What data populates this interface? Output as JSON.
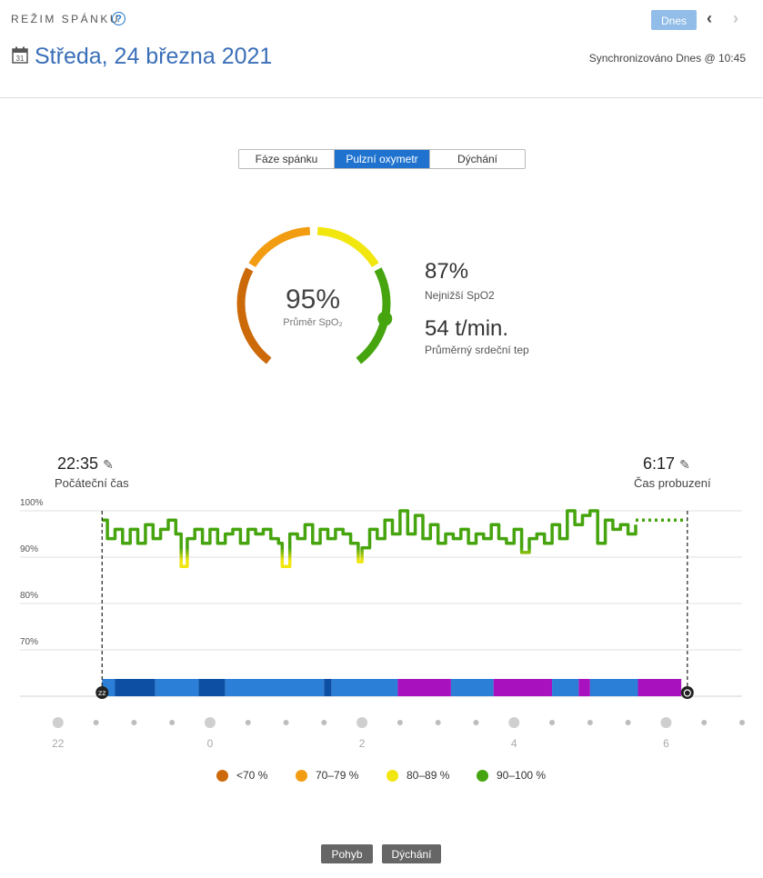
{
  "header": {
    "title": "REŽIM SPÁNKU",
    "help_symbol": "?",
    "today_label": "Dnes",
    "prev_symbol": "‹",
    "next_symbol": "›",
    "calendar_day": "31",
    "date": "Středa, 24 března 2021",
    "sync": "Synchronizováno Dnes @ 10:45"
  },
  "tabs": [
    {
      "label": "Fáze spánku",
      "active": false
    },
    {
      "label": "Pulzní oxymetr",
      "active": true
    },
    {
      "label": "Dýchání",
      "active": false
    }
  ],
  "gauge": {
    "avg_value": "95%",
    "avg_label": "Průměr SpO₂",
    "avg_fraction": 0.95,
    "colors": {
      "lt70": "#cc6a0a",
      "70_79": "#f29c12",
      "80_89": "#f2e60f",
      "90_100": "#46a40e"
    }
  },
  "stats": {
    "lowest_value": "87%",
    "lowest_label": "Nejnižší SpO2",
    "hr_value": "54 t/min.",
    "hr_label": "Průměrný srdeční tep"
  },
  "times": {
    "start": "22:35",
    "start_label": "Počáteční čas",
    "end": "6:17",
    "end_label": "Čas probuzení",
    "edit_icon": "✎"
  },
  "chart_data": {
    "type": "line",
    "ylim": [
      60,
      100
    ],
    "y_ticks": [
      "100%",
      "90%",
      "80%",
      "70%"
    ],
    "y_tick_values": [
      100,
      90,
      80,
      70
    ],
    "x_ticks": [
      "22",
      "0",
      "2",
      "4",
      "6"
    ],
    "x_tick_hours": [
      22,
      24,
      26,
      28,
      30
    ],
    "x_range_hours": [
      21.5,
      31.0
    ],
    "start_hour": 22.58,
    "end_hour": 30.28,
    "series": [
      {
        "x": [
          22.58,
          22.65,
          22.75,
          22.85,
          22.95,
          23.05,
          23.15,
          23.25,
          23.35,
          23.45,
          23.55,
          23.62,
          23.7,
          23.8,
          23.9,
          24.0,
          24.1,
          24.2,
          24.3,
          24.4,
          24.5,
          24.6,
          24.7,
          24.8,
          24.9,
          24.95,
          25.05,
          25.15,
          25.25,
          25.35,
          25.45,
          25.55,
          25.65,
          25.75,
          25.85,
          25.95,
          26.0,
          26.1,
          26.2,
          26.3,
          26.4,
          26.5,
          26.6,
          26.7,
          26.8,
          26.9,
          27.0,
          27.1,
          27.2,
          27.3,
          27.4,
          27.5,
          27.6,
          27.7,
          27.8,
          27.9,
          28.0,
          28.1,
          28.2,
          28.3,
          28.4,
          28.5,
          28.6,
          28.7,
          28.8,
          28.9,
          29.0,
          29.1,
          29.2,
          29.3,
          29.4,
          29.5,
          29.6
        ],
        "values": [
          98,
          94,
          96,
          93,
          96,
          93,
          97,
          94,
          96,
          98,
          95,
          88,
          94,
          96,
          93,
          96,
          93,
          95,
          96,
          93,
          96,
          95,
          96,
          94,
          93,
          88,
          95,
          94,
          97,
          93,
          96,
          94,
          96,
          95,
          93,
          89,
          92,
          96,
          94,
          98,
          95,
          100,
          95,
          99,
          94,
          97,
          93,
          95,
          94,
          96,
          93,
          95,
          94,
          97,
          94,
          93,
          96,
          91,
          94,
          95,
          93,
          97,
          94,
          100,
          97,
          99,
          100,
          93,
          98,
          96,
          97,
          95,
          97
        ],
        "dotted_x": [
          29.6,
          30.28
        ],
        "dotted_value": 98
      }
    ],
    "sleep_stages_bar": [
      {
        "from": 22.58,
        "to": 22.75,
        "stage": "light"
      },
      {
        "from": 22.75,
        "to": 23.28,
        "stage": "deep"
      },
      {
        "from": 23.28,
        "to": 23.85,
        "stage": "light"
      },
      {
        "from": 23.85,
        "to": 24.2,
        "stage": "deep"
      },
      {
        "from": 24.2,
        "to": 25.5,
        "stage": "light"
      },
      {
        "from": 25.5,
        "to": 25.6,
        "stage": "deep"
      },
      {
        "from": 25.6,
        "to": 26.47,
        "stage": "light"
      },
      {
        "from": 26.47,
        "to": 27.17,
        "stage": "rem"
      },
      {
        "from": 27.17,
        "to": 27.73,
        "stage": "light"
      },
      {
        "from": 27.73,
        "to": 28.5,
        "stage": "rem"
      },
      {
        "from": 28.5,
        "to": 28.85,
        "stage": "light"
      },
      {
        "from": 28.85,
        "to": 29.0,
        "stage": "rem"
      },
      {
        "from": 29.0,
        "to": 29.63,
        "stage": "light"
      },
      {
        "from": 29.63,
        "to": 30.2,
        "stage": "rem"
      }
    ],
    "stage_colors": {
      "deep": "#0c4fa3",
      "light": "#2b7fd6",
      "rem": "#a812be"
    },
    "grid": true
  },
  "legend": [
    {
      "label": "<70 %",
      "color": "#cc6a0a"
    },
    {
      "label": "70–79 %",
      "color": "#f29c12"
    },
    {
      "label": "80–89 %",
      "color": "#f2e60f"
    },
    {
      "label": "90–100 %",
      "color": "#46a40e"
    }
  ],
  "bottom_buttons": {
    "movement": "Pohyb",
    "breathing": "Dýchání"
  }
}
